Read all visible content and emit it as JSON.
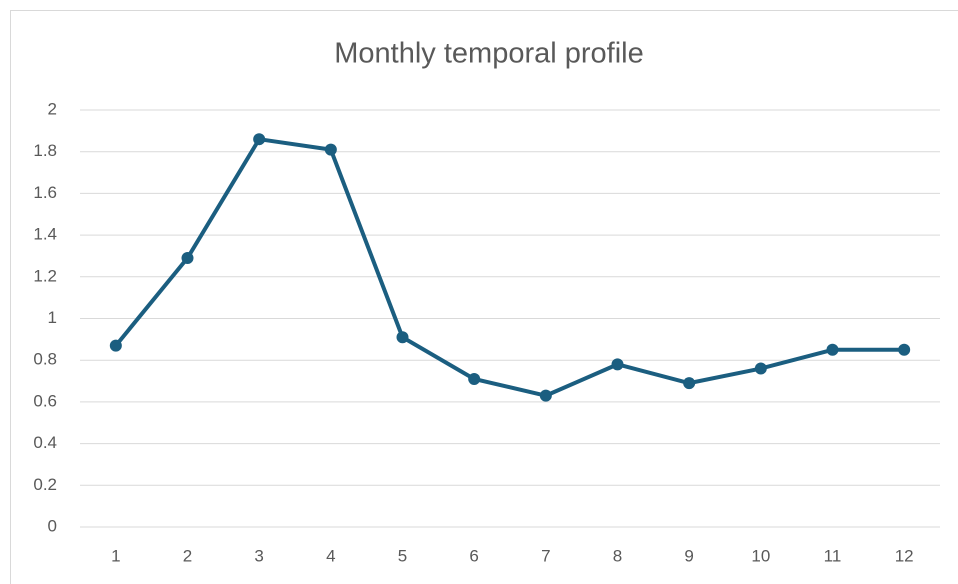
{
  "chart_data": {
    "type": "line",
    "title": "Monthly temporal profile",
    "categories": [
      "1",
      "2",
      "3",
      "4",
      "5",
      "6",
      "7",
      "8",
      "9",
      "10",
      "11",
      "12"
    ],
    "series": [
      {
        "name": "Monthly temporal profile",
        "color": "#1b5e80",
        "values": [
          0.87,
          1.29,
          1.86,
          1.81,
          0.91,
          0.71,
          0.63,
          0.78,
          0.69,
          0.76,
          0.85,
          0.85
        ]
      }
    ],
    "ylim": [
      0,
      2
    ],
    "yticks": [
      0,
      0.2,
      0.4,
      0.6,
      0.8,
      1,
      1.2,
      1.4,
      1.6,
      1.8,
      2
    ],
    "grid": true
  }
}
